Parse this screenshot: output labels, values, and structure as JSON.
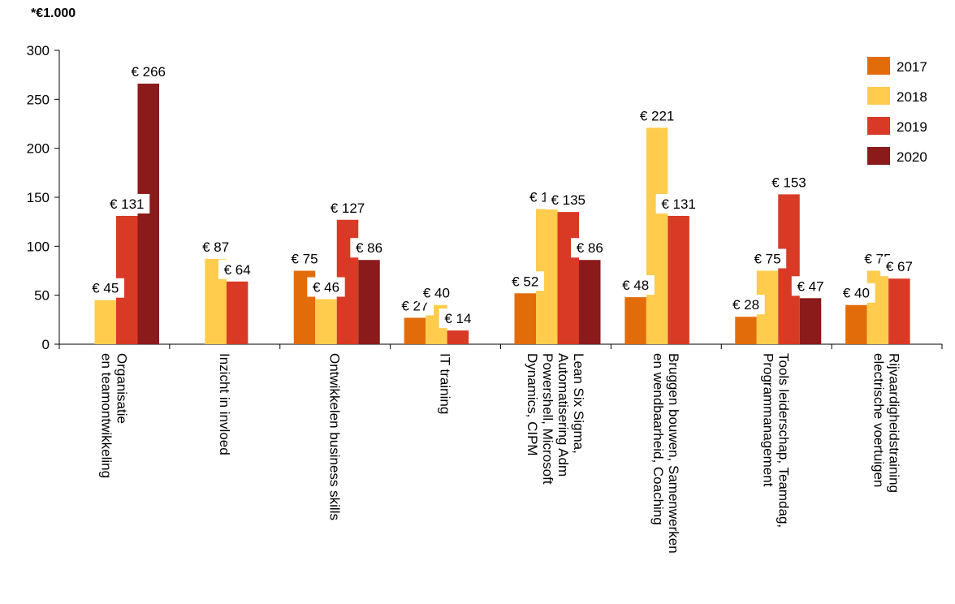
{
  "unit_note": "*€1.000",
  "chart_data": {
    "type": "bar",
    "title": "",
    "xlabel": "",
    "ylabel": "",
    "ylim": [
      0,
      300
    ],
    "yticks": [
      0,
      50,
      100,
      150,
      200,
      250,
      300
    ],
    "grid": false,
    "legend_position": "top-right",
    "value_prefix": "€ ",
    "categories": [
      [
        "Organisatie",
        "en teamontwikkeling"
      ],
      [
        "Inzicht in invloed"
      ],
      [
        "Ontwikkelen business skills"
      ],
      [
        "IT training"
      ],
      [
        "Lean Six Sigma,",
        "Automatisering Adm",
        "Powershell, Microsoft",
        "Dynamics, CIPM"
      ],
      [
        "Bruggen bouwen, Samenwerken",
        "en wendbaarheid, Coaching"
      ],
      [
        "Tools leiderschap, Teamdag,",
        "Programmanagement"
      ],
      [
        "Rijvaardigheidstraining",
        "electrische voertuigen"
      ]
    ],
    "series": [
      {
        "name": "2017",
        "color": "#E36C0A",
        "values": [
          null,
          null,
          75,
          27,
          52,
          48,
          28,
          40
        ]
      },
      {
        "name": "2018",
        "color": "#FFCC4D",
        "values": [
          45,
          87,
          46,
          40,
          138,
          221,
          75,
          75
        ]
      },
      {
        "name": "2019",
        "color": "#D93A25",
        "values": [
          131,
          64,
          127,
          14,
          135,
          131,
          153,
          67
        ]
      },
      {
        "name": "2020",
        "color": "#8B1A1A",
        "values": [
          266,
          null,
          86,
          null,
          86,
          null,
          47,
          null
        ]
      }
    ]
  }
}
